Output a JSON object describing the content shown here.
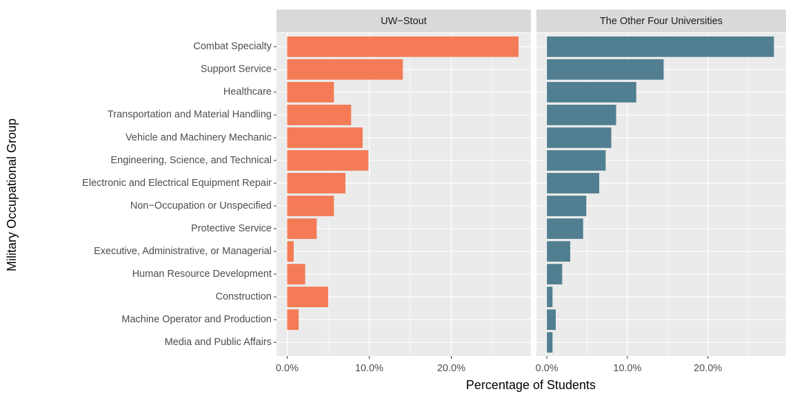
{
  "chart_data": {
    "type": "bar",
    "orientation": "horizontal",
    "xlabel": "Percentage of Students",
    "ylabel": "Military Occupational Group",
    "categories": [
      "Combat Specialty",
      "Support Service",
      "Healthcare",
      "Transportation and Material Handling",
      "Vehicle and Machinery Mechanic",
      "Engineering, Science, and Technical",
      "Electronic and Electrical Equipment Repair",
      "Non−Occupation or Unspecified",
      "Protective Service",
      "Executive, Administrative, or Managerial",
      "Human Resource Development",
      "Construction",
      "Machine Operator and Production",
      "Media and Public Affairs"
    ],
    "series": [
      {
        "name": "UW−Stout",
        "color": "#f47b56",
        "values": [
          28.2,
          14.1,
          5.7,
          7.8,
          9.2,
          9.9,
          7.1,
          5.7,
          3.6,
          0.8,
          2.2,
          5.0,
          1.4,
          0
        ]
      },
      {
        "name": "The Other Four Universities",
        "color": "#517f91",
        "values": [
          28.2,
          14.5,
          11.1,
          8.6,
          8.0,
          7.3,
          6.5,
          4.9,
          4.5,
          2.9,
          1.9,
          0.7,
          1.1,
          0.7
        ]
      }
    ],
    "xlim": [
      -1.3,
      29.7
    ],
    "xticks": [
      {
        "value": 0,
        "label": "0.0%"
      },
      {
        "value": 10,
        "label": "10.0%"
      },
      {
        "value": 20,
        "label": "20.0%"
      }
    ],
    "grid": true
  }
}
